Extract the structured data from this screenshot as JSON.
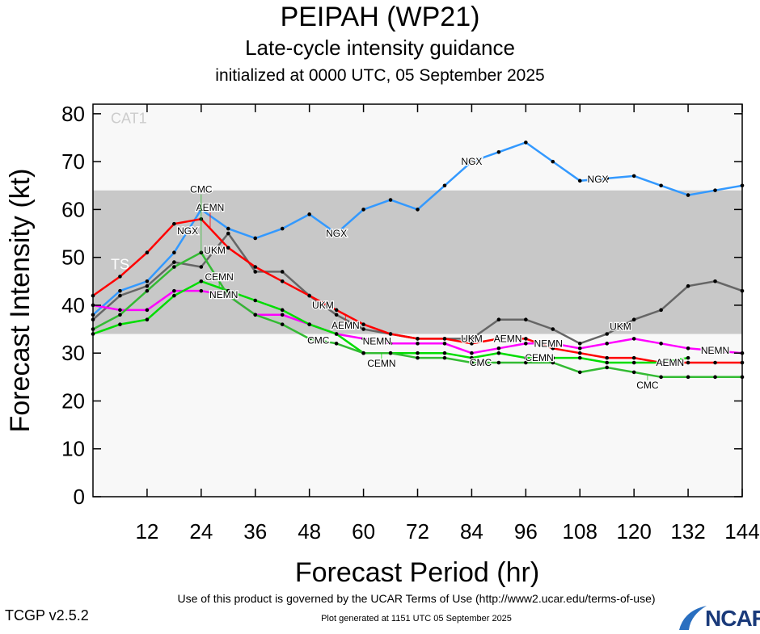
{
  "header": {
    "title": "PEIPAH (WP21)",
    "subtitle": "Late-cycle intensity guidance",
    "init": "initialized at 0000 UTC, 05 September 2025"
  },
  "footer": {
    "terms": "Use of this product is governed by the UCAR Terms of Use (http://www2.ucar.edu/terms-of-use)",
    "generated": "Plot generated at 1151 UTC   05 September 2025",
    "version": "TCGP v2.5.2",
    "logo": "NCAR"
  },
  "chart_data": {
    "type": "line",
    "xlabel": "Forecast Period (hr)",
    "ylabel": "Forecast Intensity (kt)",
    "xlim": [
      0,
      144
    ],
    "ylim": [
      0,
      82
    ],
    "xticks": [
      12,
      24,
      36,
      48,
      60,
      72,
      84,
      96,
      108,
      120,
      132,
      144
    ],
    "yticks": [
      0,
      10,
      20,
      30,
      40,
      50,
      60,
      70,
      80
    ],
    "bands": [
      {
        "label": "TS",
        "from": 34,
        "to": 64,
        "color": "#c8c8c8"
      },
      {
        "label": "CAT1",
        "from": 64,
        "to": 82,
        "color": "#f8f8f8"
      }
    ],
    "x": [
      0,
      6,
      12,
      18,
      24,
      30,
      36,
      42,
      48,
      54,
      60,
      66,
      72,
      78,
      84,
      90,
      96,
      102,
      108,
      114,
      120,
      126,
      132,
      138,
      144
    ],
    "series": [
      {
        "name": "NGX",
        "color": "#3399ff",
        "values": [
          38,
          43,
          45,
          51,
          60,
          56,
          54,
          56,
          59,
          55,
          60,
          62,
          60,
          65,
          70,
          72,
          74,
          70,
          66,
          66.5,
          67,
          65,
          63,
          64,
          65
        ],
        "labels": [
          21,
          54,
          84,
          112
        ]
      },
      {
        "name": "UKM",
        "color": "#666666",
        "values": [
          37,
          42,
          44,
          49,
          48,
          55,
          47,
          47,
          42,
          38,
          35,
          34,
          33,
          33,
          33,
          37,
          37,
          35,
          32,
          34,
          37,
          39,
          44,
          45,
          43
        ],
        "labels": [
          27,
          51,
          84,
          117
        ]
      },
      {
        "name": "AEMN",
        "color": "#ff0000",
        "values": [
          42,
          46,
          51,
          57,
          58,
          52,
          48,
          45,
          42,
          39,
          36,
          34,
          33,
          33,
          32,
          33,
          33,
          31,
          30,
          29,
          29,
          28,
          28,
          28,
          28
        ],
        "labels": [
          26,
          56,
          92,
          128
        ]
      },
      {
        "name": "NEMN",
        "color": "#ff00ff",
        "values": [
          40,
          39,
          39,
          43,
          43,
          42,
          38,
          38,
          36,
          34,
          33,
          32,
          32,
          32,
          30,
          31,
          32,
          32,
          31,
          32,
          33,
          32,
          31,
          30.5,
          30
        ],
        "labels": [
          29,
          63,
          101,
          138
        ]
      },
      {
        "name": "CEMN",
        "color": "#00dd00",
        "values": [
          34,
          36,
          37,
          42,
          45,
          43,
          41,
          39,
          36,
          34,
          30,
          30,
          30,
          30,
          29,
          30,
          29,
          29,
          29,
          28,
          28,
          28,
          29,
          null,
          null
        ],
        "labels": [
          28,
          64,
          99
        ]
      },
      {
        "name": "CMC",
        "color": "#33bb33",
        "values": [
          35,
          38,
          43,
          48,
          51,
          42,
          38,
          36,
          33,
          32,
          30,
          30,
          29,
          29,
          28,
          28,
          28,
          28,
          26,
          27,
          26,
          25,
          25,
          25,
          25
        ],
        "labels": [
          24,
          50,
          86,
          123
        ]
      }
    ]
  }
}
